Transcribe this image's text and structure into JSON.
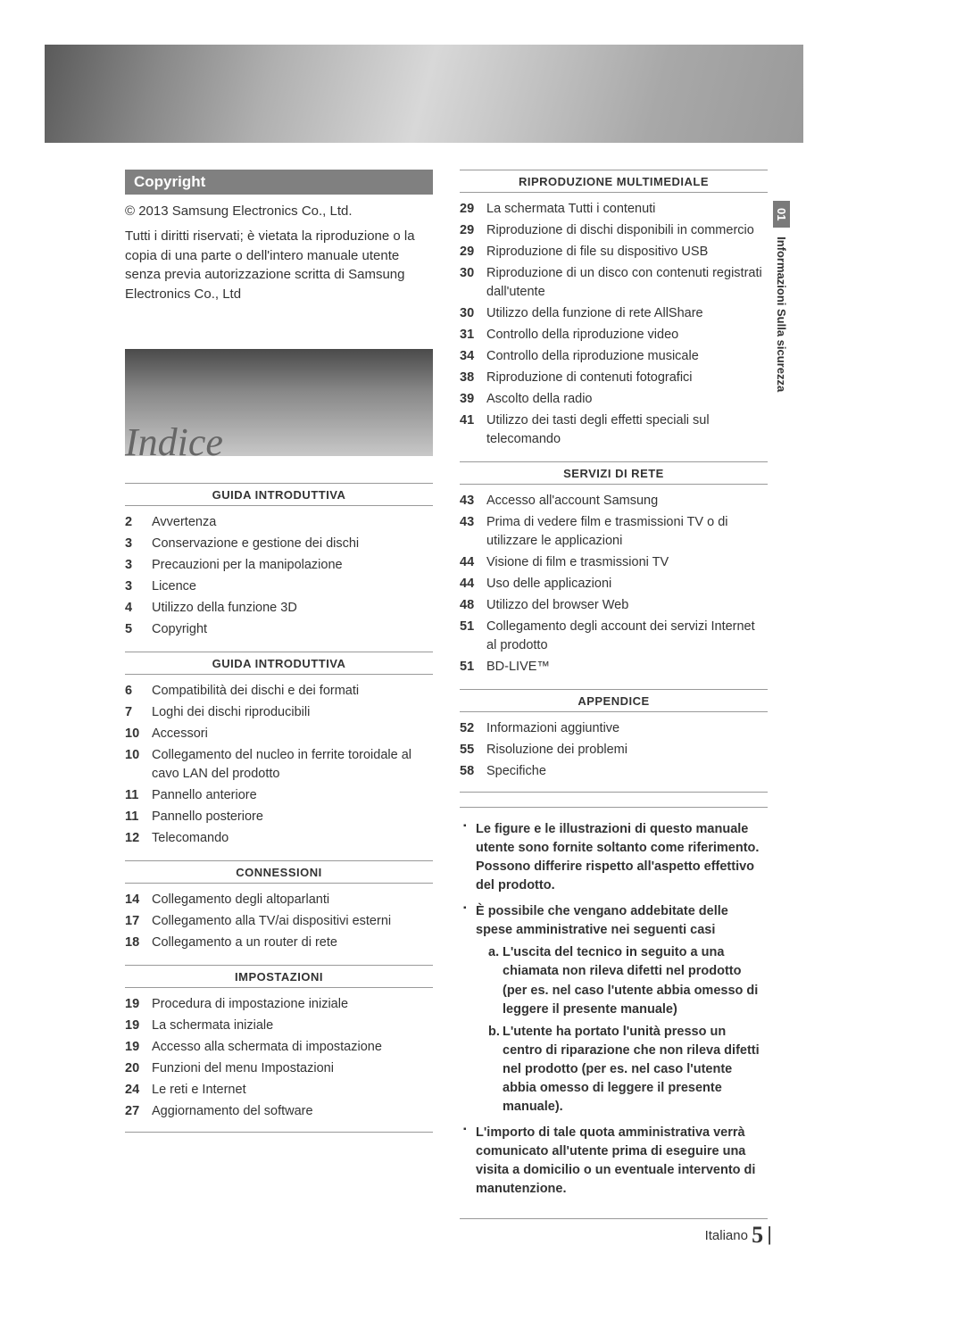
{
  "banner": {
    "gradient_colors": [
      "#5a5a5a",
      "#888888",
      "#b0b0b0",
      "#d8d8d8",
      "#c0c0c0",
      "#a8a8a8",
      "#9a9a9a"
    ]
  },
  "copyright": {
    "heading": "Copyright",
    "line1": "© 2013 Samsung Electronics Co., Ltd.",
    "body": "Tutti i diritti riservati; è vietata la riproduzione o la copia di una parte o dell'intero manuale utente senza previa autorizzazione scritta di Samsung Electronics Co., Ltd"
  },
  "indice_title": "Indice",
  "left_sections": [
    {
      "heading": "GUIDA INTRODUTTIVA",
      "items": [
        {
          "page": "2",
          "label": "Avvertenza"
        },
        {
          "page": "3",
          "label": "Conservazione e gestione dei dischi"
        },
        {
          "page": "3",
          "label": "Precauzioni per la manipolazione"
        },
        {
          "page": "3",
          "label": "Licence"
        },
        {
          "page": "4",
          "label": "Utilizzo della funzione 3D"
        },
        {
          "page": "5",
          "label": "Copyright"
        }
      ]
    },
    {
      "heading": "GUIDA INTRODUTTIVA",
      "items": [
        {
          "page": "6",
          "label": "Compatibilità dei dischi e dei formati"
        },
        {
          "page": "7",
          "label": "Loghi dei dischi riproducibili"
        },
        {
          "page": "10",
          "label": "Accessori"
        },
        {
          "page": "10",
          "label": "Collegamento del nucleo in ferrite toroidale al cavo LAN del prodotto"
        },
        {
          "page": "11",
          "label": "Pannello anteriore"
        },
        {
          "page": "11",
          "label": "Pannello posteriore"
        },
        {
          "page": "12",
          "label": "Telecomando"
        }
      ]
    },
    {
      "heading": "CONNESSIONI",
      "items": [
        {
          "page": "14",
          "label": "Collegamento degli altoparlanti"
        },
        {
          "page": "17",
          "label": "Collegamento alla TV/ai dispositivi esterni"
        },
        {
          "page": "18",
          "label": "Collegamento a un router di rete"
        }
      ]
    },
    {
      "heading": "IMPOSTAZIONI",
      "items": [
        {
          "page": "19",
          "label": "Procedura di impostazione iniziale"
        },
        {
          "page": "19",
          "label": "La schermata iniziale"
        },
        {
          "page": "19",
          "label": "Accesso alla schermata di impostazione"
        },
        {
          "page": "20",
          "label": "Funzioni del menu Impostazioni"
        },
        {
          "page": "24",
          "label": "Le reti e Internet"
        },
        {
          "page": "27",
          "label": "Aggiornamento del software"
        }
      ]
    }
  ],
  "right_sections": [
    {
      "heading": "RIPRODUZIONE MULTIMEDIALE",
      "items": [
        {
          "page": "29",
          "label": "La schermata Tutti i contenuti"
        },
        {
          "page": "29",
          "label": "Riproduzione di dischi disponibili in commercio"
        },
        {
          "page": "29",
          "label": "Riproduzione di file su dispositivo USB"
        },
        {
          "page": "30",
          "label": "Riproduzione di un disco con contenuti registrati dall'utente"
        },
        {
          "page": "30",
          "label": "Utilizzo della funzione di rete AllShare"
        },
        {
          "page": "31",
          "label": "Controllo della riproduzione video"
        },
        {
          "page": "34",
          "label": "Controllo della riproduzione musicale"
        },
        {
          "page": "38",
          "label": "Riproduzione di contenuti fotografici"
        },
        {
          "page": "39",
          "label": "Ascolto della radio"
        },
        {
          "page": "41",
          "label": "Utilizzo dei tasti degli effetti speciali sul telecomando"
        }
      ]
    },
    {
      "heading": "SERVIZI DI RETE",
      "items": [
        {
          "page": "43",
          "label": "Accesso all'account Samsung"
        },
        {
          "page": "43",
          "label": "Prima di vedere film e trasmissioni TV o di utilizzare le applicazioni"
        },
        {
          "page": "44",
          "label": "Visione di film e trasmissioni TV"
        },
        {
          "page": "44",
          "label": "Uso delle applicazioni"
        },
        {
          "page": "48",
          "label": "Utilizzo del browser Web"
        },
        {
          "page": "51",
          "label": "Collegamento degli account dei servizi Internet al prodotto"
        },
        {
          "page": "51",
          "label": "BD-LIVE™"
        }
      ]
    },
    {
      "heading": "APPENDICE",
      "items": [
        {
          "page": "52",
          "label": "Informazioni aggiuntive"
        },
        {
          "page": "55",
          "label": "Risoluzione dei problemi"
        },
        {
          "page": "58",
          "label": "Specifiche"
        }
      ]
    }
  ],
  "notes": {
    "bullets": [
      "Le figure e le illustrazioni di questo manuale utente sono fornite soltanto come riferimento. Possono differire rispetto all'aspetto effettivo del prodotto.",
      "È possibile che vengano addebitate delle spese amministrative nei seguenti casi",
      "L'importo di tale quota amministrativa verrà comunicato all'utente prima di eseguire una visita a domicilio o un eventuale intervento di manutenzione."
    ],
    "sub_a": "L'uscita del tecnico in seguito a una chiamata non rileva difetti nel prodotto (per es. nel caso l'utente abbia omesso di leggere il presente manuale)",
    "sub_b": "L'utente ha portato l'unità presso un centro di riparazione che non rileva difetti nel prodotto (per es. nel caso l'utente abbia omesso di leggere il presente manuale)."
  },
  "side_tab": {
    "num": "01",
    "text": "Informazioni Sulla sicurezza"
  },
  "footer": {
    "lang": "Italiano",
    "page": "5"
  },
  "colors": {
    "heading_bg": "#808080",
    "heading_fg": "#ffffff",
    "text": "#333333",
    "rule": "#999999",
    "indice_color": "#666666"
  }
}
